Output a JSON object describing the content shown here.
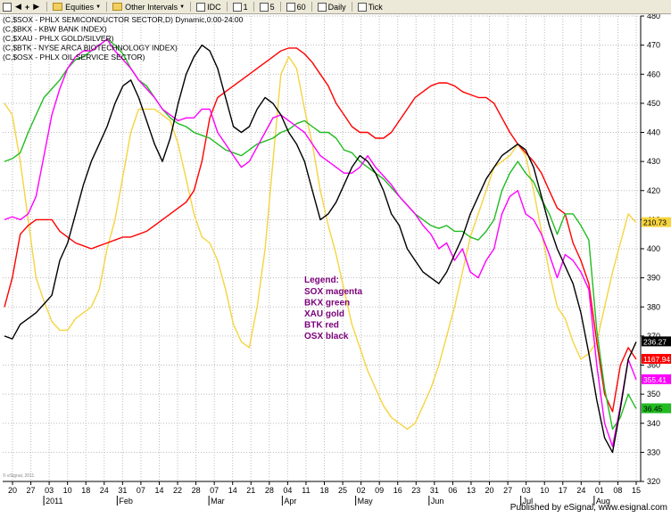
{
  "toolbar": {
    "items": [
      {
        "name": "equities",
        "label": "Equities",
        "dropdown": true,
        "folder": true
      },
      {
        "name": "other-intervals",
        "label": "Other Intervals",
        "dropdown": true,
        "folder": true
      },
      {
        "name": "idc",
        "label": "IDC",
        "dropdown": false,
        "folder": false
      },
      {
        "name": "interval-1",
        "label": "1",
        "dropdown": false,
        "folder": false
      },
      {
        "name": "interval-5",
        "label": "5",
        "dropdown": false,
        "folder": false
      },
      {
        "name": "interval-60",
        "label": "60",
        "dropdown": false,
        "folder": false
      },
      {
        "name": "daily",
        "label": "Daily",
        "dropdown": false,
        "folder": false
      },
      {
        "name": "tick",
        "label": "Tick",
        "dropdown": false,
        "folder": false
      }
    ]
  },
  "header_lines": [
    "(C,$SOX - PHLX SEMICONDUCTOR SECTOR,D) Dynamic,0:00-24:00",
    "(C,$BKX - KBW BANK INDEX)",
    "(C,$XAU - PHLX GOLD/SILVER)",
    "(C,$BTK - NYSE ARCA BIOTECHNOLOGY INDEX)",
    "(C,$OSX - PHLX OIL SERVICE SECTOR)"
  ],
  "legend": {
    "title": "Legend:",
    "lines": [
      "SOX magenta",
      "BKX green",
      "XAU gold",
      "BTK red",
      "OSX black"
    ]
  },
  "footer": "Published by eSignal, www.esignal.com",
  "watermark": "© eSignal, 2011",
  "colors": {
    "SOX": "#ff00ff",
    "BKX": "#22bb22",
    "XAU": "#f5d440",
    "BTK": "#ff0000",
    "OSX": "#000000",
    "grid": "#bbbbbb",
    "background": "#ffffff",
    "legend": "#7a007a"
  },
  "chart_data": {
    "type": "line",
    "title": "",
    "xlabel": "",
    "ylabel": "",
    "ylim": [
      320,
      480
    ],
    "yticks": [
      320,
      330,
      340,
      350,
      360,
      370,
      380,
      390,
      400,
      410,
      420,
      430,
      440,
      450,
      460,
      470,
      480
    ],
    "grid": true,
    "legend_position": "center",
    "x_tick_labels": [
      "20",
      "27",
      "03",
      "10",
      "18",
      "24",
      "31",
      "07",
      "14",
      "22",
      "28",
      "07",
      "14",
      "21",
      "28",
      "04",
      "11",
      "18",
      "25",
      "02",
      "09",
      "16",
      "23",
      "31",
      "06",
      "13",
      "20",
      "27",
      "03",
      "10",
      "17",
      "24",
      "01",
      "08",
      "15"
    ],
    "month_labels": [
      "2011",
      "Feb",
      "Mar",
      "Apr",
      "May",
      "Jun",
      "Jul",
      "Aug"
    ],
    "last_labels": [
      {
        "series": "OSX",
        "text": "236.27"
      },
      {
        "series": "BTK",
        "text": "1167.94"
      },
      {
        "series": "SOX",
        "text": "355.41"
      },
      {
        "series": "BKX",
        "text": "36.45"
      },
      {
        "series": "XAU",
        "text": "210.73"
      }
    ],
    "series": [
      {
        "name": "SOX",
        "values": [
          410,
          411,
          410,
          412,
          418,
          432,
          446,
          455,
          462,
          466,
          468,
          468,
          470,
          472,
          468,
          465,
          462,
          458,
          455,
          452,
          448,
          446,
          444,
          445,
          445,
          448,
          448,
          440,
          436,
          432,
          428,
          430,
          435,
          440,
          445,
          446,
          444,
          442,
          440,
          436,
          432,
          430,
          428,
          426,
          426,
          428,
          432,
          428,
          425,
          422,
          418,
          415,
          412,
          408,
          405,
          400,
          402,
          396,
          400,
          392,
          390,
          396,
          400,
          412,
          418,
          420,
          412,
          410,
          405,
          398,
          390,
          398,
          396,
          392,
          386,
          360,
          340,
          332,
          346,
          362,
          355
        ]
      },
      {
        "name": "BKX",
        "values": [
          430,
          431,
          433,
          440,
          446,
          452,
          455,
          458,
          462,
          465,
          466,
          468,
          470,
          472,
          470,
          467,
          462,
          458,
          456,
          452,
          448,
          445,
          443,
          442,
          440,
          439,
          438,
          436,
          434,
          433,
          432,
          434,
          436,
          437,
          438,
          440,
          441,
          443,
          444,
          442,
          440,
          440,
          438,
          434,
          433,
          430,
          428,
          426,
          424,
          421,
          418,
          415,
          412,
          410,
          408,
          407,
          408,
          406,
          406,
          404,
          403,
          406,
          410,
          420,
          426,
          430,
          426,
          423,
          417,
          412,
          405,
          412,
          412,
          408,
          403,
          372,
          352,
          338,
          342,
          350,
          345
        ]
      },
      {
        "name": "XAU",
        "values": [
          450,
          446,
          430,
          410,
          390,
          382,
          375,
          372,
          372,
          376,
          378,
          380,
          386,
          400,
          410,
          425,
          440,
          448,
          448,
          448,
          446,
          444,
          436,
          424,
          412,
          404,
          402,
          396,
          386,
          374,
          368,
          366,
          380,
          400,
          430,
          460,
          466,
          462,
          448,
          436,
          420,
          408,
          398,
          386,
          374,
          366,
          358,
          352,
          346,
          342,
          340,
          338,
          340,
          346,
          352,
          360,
          370,
          380,
          392,
          404,
          412,
          420,
          428,
          430,
          432,
          436,
          432,
          420,
          406,
          392,
          380,
          376,
          368,
          362,
          364,
          368,
          380,
          392,
          402,
          412,
          409
        ]
      },
      {
        "name": "BTK",
        "values": [
          380,
          390,
          405,
          408,
          410,
          410,
          410,
          406,
          404,
          402,
          401,
          400,
          401,
          402,
          403,
          404,
          404,
          405,
          406,
          408,
          410,
          412,
          414,
          416,
          420,
          430,
          445,
          452,
          454,
          456,
          458,
          460,
          462,
          464,
          466,
          468,
          469,
          469,
          467,
          464,
          460,
          456,
          450,
          446,
          442,
          440,
          440,
          438,
          438,
          440,
          444,
          448,
          452,
          454,
          456,
          457,
          457,
          456,
          454,
          453,
          452,
          452,
          450,
          445,
          440,
          436,
          433,
          430,
          426,
          420,
          414,
          412,
          402,
          396,
          388,
          368,
          350,
          344,
          360,
          366,
          362
        ]
      },
      {
        "name": "OSX",
        "values": [
          370,
          369,
          374,
          376,
          378,
          381,
          384,
          396,
          402,
          412,
          422,
          430,
          436,
          442,
          450,
          456,
          458,
          452,
          444,
          436,
          430,
          438,
          450,
          460,
          466,
          470,
          468,
          462,
          452,
          442,
          440,
          442,
          448,
          452,
          450,
          446,
          440,
          436,
          430,
          420,
          410,
          412,
          416,
          422,
          428,
          432,
          430,
          426,
          420,
          412,
          408,
          400,
          396,
          392,
          390,
          388,
          392,
          398,
          404,
          412,
          418,
          424,
          428,
          432,
          434,
          436,
          434,
          428,
          418,
          408,
          400,
          394,
          388,
          378,
          364,
          348,
          335,
          330,
          345,
          362,
          368
        ]
      }
    ]
  }
}
